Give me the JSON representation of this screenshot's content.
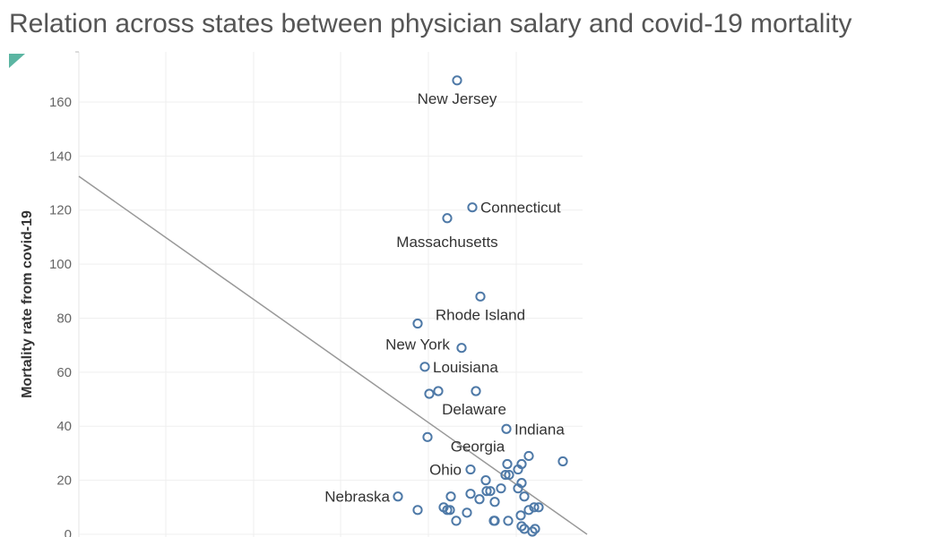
{
  "chart_data": {
    "type": "scatter",
    "title": "Relation across states between physician salary and covid-19 mortality",
    "ylabel": "Mortality rate from covid-19",
    "xlabel": "",
    "ylim": [
      0,
      170
    ],
    "yticks": [
      0,
      20,
      40,
      60,
      80,
      100,
      120,
      140,
      160
    ],
    "grid": true,
    "marker_color": "#4e79a7",
    "trendline_color": "#999999",
    "trendline": [
      [
        0,
        132.5
      ],
      [
        0.567,
        0
      ]
    ],
    "points": [
      {
        "x": 0.422,
        "y": 168,
        "label": "New Jersey"
      },
      {
        "x": 0.439,
        "y": 121,
        "label": "Connecticut"
      },
      {
        "x": 0.411,
        "y": 117,
        "label": "Massachusetts"
      },
      {
        "x": 0.448,
        "y": 88,
        "label": "Rhode Island"
      },
      {
        "x": 0.378,
        "y": 78,
        "label": "New York"
      },
      {
        "x": 0.427,
        "y": 69
      },
      {
        "x": 0.386,
        "y": 62,
        "label": "Louisiana"
      },
      {
        "x": 0.401,
        "y": 53
      },
      {
        "x": 0.391,
        "y": 52
      },
      {
        "x": 0.443,
        "y": 53,
        "label": "Delaware"
      },
      {
        "x": 0.477,
        "y": 39,
        "label": "Indiana"
      },
      {
        "x": 0.389,
        "y": 36
      },
      {
        "x": 0.54,
        "y": 27
      },
      {
        "x": 0.502,
        "y": 29
      },
      {
        "x": 0.478,
        "y": 26,
        "label": "Georgia"
      },
      {
        "x": 0.494,
        "y": 26
      },
      {
        "x": 0.437,
        "y": 24,
        "label": "Ohio"
      },
      {
        "x": 0.49,
        "y": 24
      },
      {
        "x": 0.476,
        "y": 22
      },
      {
        "x": 0.48,
        "y": 22
      },
      {
        "x": 0.454,
        "y": 20
      },
      {
        "x": 0.494,
        "y": 19
      },
      {
        "x": 0.471,
        "y": 17
      },
      {
        "x": 0.49,
        "y": 17
      },
      {
        "x": 0.455,
        "y": 16
      },
      {
        "x": 0.459,
        "y": 16
      },
      {
        "x": 0.356,
        "y": 14,
        "label": "Nebraska"
      },
      {
        "x": 0.415,
        "y": 14
      },
      {
        "x": 0.437,
        "y": 15
      },
      {
        "x": 0.497,
        "y": 14
      },
      {
        "x": 0.447,
        "y": 13
      },
      {
        "x": 0.464,
        "y": 12
      },
      {
        "x": 0.407,
        "y": 10
      },
      {
        "x": 0.411,
        "y": 9
      },
      {
        "x": 0.414,
        "y": 9
      },
      {
        "x": 0.508,
        "y": 10
      },
      {
        "x": 0.513,
        "y": 10
      },
      {
        "x": 0.378,
        "y": 9
      },
      {
        "x": 0.433,
        "y": 8
      },
      {
        "x": 0.502,
        "y": 9
      },
      {
        "x": 0.493,
        "y": 7
      },
      {
        "x": 0.421,
        "y": 5
      },
      {
        "x": 0.463,
        "y": 5
      },
      {
        "x": 0.464,
        "y": 5
      },
      {
        "x": 0.479,
        "y": 5
      },
      {
        "x": 0.494,
        "y": 3
      },
      {
        "x": 0.497,
        "y": 2
      },
      {
        "x": 0.506,
        "y": 1
      },
      {
        "x": 0.509,
        "y": 2
      }
    ]
  }
}
